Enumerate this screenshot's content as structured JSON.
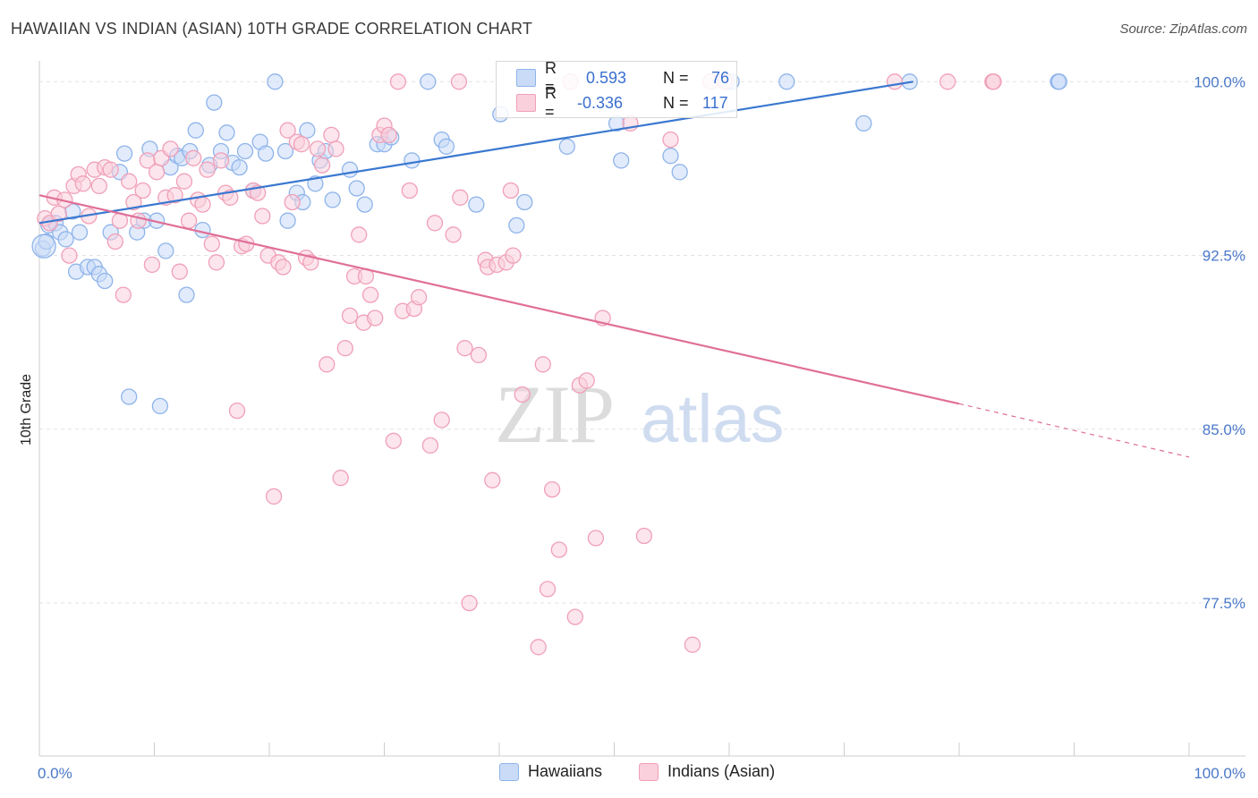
{
  "title": "HAWAIIAN VS INDIAN (ASIAN) 10TH GRADE CORRELATION CHART",
  "source": "Source: ZipAtlas.com",
  "watermark": {
    "zip": "ZIP",
    "atlas": "atlas"
  },
  "stats": [
    {
      "r_label": "R =",
      "r_value": "0.593",
      "n_label": "N =",
      "n_value": "76",
      "color": "#8fb4ea",
      "fill": "#c9dbf7"
    },
    {
      "r_label": "R =",
      "r_value": "-0.336",
      "n_label": "N =",
      "n_value": "117",
      "color": "#f0a0b8",
      "fill": "#fad0dc"
    }
  ],
  "legend": [
    {
      "label": "Hawaiians",
      "color": "#8fb4ea",
      "fill": "#c9dbf7"
    },
    {
      "label": "Indians (Asian)",
      "color": "#f0a0b8",
      "fill": "#fad0dc"
    }
  ],
  "chart_data": {
    "type": "scatter",
    "title": "HAWAIIAN VS INDIAN (ASIAN) 10TH GRADE CORRELATION CHART",
    "xlabel": "",
    "ylabel": "10th Grade",
    "xlim": [
      0,
      100
    ],
    "ylim": [
      70.9,
      100.9
    ],
    "x_tick_labels": [
      "0.0%",
      "100.0%"
    ],
    "y_ticks": [
      77.5,
      85.0,
      92.5,
      100.0
    ],
    "y_tick_labels": [
      "77.5%",
      "85.0%",
      "92.5%",
      "100.0%"
    ],
    "grid": "horizontal dashed",
    "legend_position": "bottom-center",
    "series": [
      {
        "name": "Hawaiians",
        "color": "#8fb4ea",
        "fill": "#c9dbf7",
        "line_color": "#3a78d0",
        "trend": {
          "x": [
            0,
            76
          ],
          "y": [
            93.9,
            100.0
          ]
        },
        "points": [
          [
            0.3,
            92.8
          ],
          [
            0.6,
            93.1
          ],
          [
            0.8,
            93.8
          ],
          [
            1.4,
            93.9
          ],
          [
            1.8,
            93.5
          ],
          [
            2.3,
            93.2
          ],
          [
            2.9,
            94.4
          ],
          [
            3.2,
            91.8
          ],
          [
            3.5,
            93.5
          ],
          [
            4.2,
            92.0
          ],
          [
            4.8,
            92.0
          ],
          [
            5.2,
            91.7
          ],
          [
            5.7,
            91.4
          ],
          [
            6.2,
            93.5
          ],
          [
            7.0,
            96.1
          ],
          [
            7.4,
            96.9
          ],
          [
            7.8,
            86.4
          ],
          [
            8.5,
            93.5
          ],
          [
            9.1,
            94.0
          ],
          [
            9.6,
            97.1
          ],
          [
            10.2,
            94.0
          ],
          [
            10.5,
            86.0
          ],
          [
            11.0,
            92.7
          ],
          [
            11.4,
            96.3
          ],
          [
            12.0,
            96.8
          ],
          [
            12.4,
            96.7
          ],
          [
            12.8,
            90.8
          ],
          [
            13.1,
            97.0
          ],
          [
            13.6,
            97.9
          ],
          [
            14.2,
            93.6
          ],
          [
            14.8,
            96.4
          ],
          [
            15.2,
            99.1
          ],
          [
            15.8,
            97.0
          ],
          [
            16.3,
            97.8
          ],
          [
            16.8,
            96.5
          ],
          [
            17.4,
            96.3
          ],
          [
            17.9,
            97.0
          ],
          [
            18.6,
            95.3
          ],
          [
            19.2,
            97.4
          ],
          [
            19.7,
            96.9
          ],
          [
            20.5,
            100.0
          ],
          [
            21.4,
            97.0
          ],
          [
            21.6,
            94.0
          ],
          [
            22.4,
            95.2
          ],
          [
            22.9,
            94.8
          ],
          [
            23.3,
            97.9
          ],
          [
            24.0,
            95.6
          ],
          [
            24.4,
            96.6
          ],
          [
            24.9,
            97.0
          ],
          [
            25.5,
            94.9
          ],
          [
            27.0,
            96.2
          ],
          [
            27.6,
            95.4
          ],
          [
            28.3,
            94.7
          ],
          [
            29.4,
            97.3
          ],
          [
            30.0,
            97.3
          ],
          [
            30.6,
            97.6
          ],
          [
            32.4,
            96.6
          ],
          [
            33.8,
            100.0
          ],
          [
            35.0,
            97.5
          ],
          [
            35.4,
            97.2
          ],
          [
            38.0,
            94.7
          ],
          [
            40.1,
            98.6
          ],
          [
            41.5,
            93.8
          ],
          [
            42.2,
            94.8
          ],
          [
            45.9,
            97.2
          ],
          [
            50.2,
            98.2
          ],
          [
            50.6,
            96.6
          ],
          [
            54.9,
            96.8
          ],
          [
            55.7,
            96.1
          ],
          [
            59.8,
            100.0
          ],
          [
            60.2,
            100.0
          ],
          [
            65.0,
            100.0
          ],
          [
            71.7,
            98.2
          ],
          [
            75.7,
            100.0
          ],
          [
            88.6,
            100.0
          ],
          [
            88.7,
            100.0
          ]
        ]
      },
      {
        "name": "Indians (Asian)",
        "color": "#f0a0b8",
        "fill": "#fad0dc",
        "line_color": "#e06f98",
        "trend": {
          "x": [
            0,
            80
          ],
          "y": [
            95.1,
            86.1
          ]
        },
        "trend_dashed": {
          "x": [
            80,
            100
          ],
          "y": [
            86.1,
            83.8
          ]
        },
        "points": [
          [
            0.5,
            94.1
          ],
          [
            0.9,
            93.9
          ],
          [
            1.3,
            95.0
          ],
          [
            1.7,
            94.3
          ],
          [
            2.2,
            94.9
          ],
          [
            2.6,
            92.5
          ],
          [
            3.0,
            95.5
          ],
          [
            3.4,
            96.0
          ],
          [
            3.8,
            95.6
          ],
          [
            4.3,
            94.2
          ],
          [
            4.8,
            96.2
          ],
          [
            5.2,
            95.5
          ],
          [
            5.7,
            96.3
          ],
          [
            6.2,
            96.2
          ],
          [
            6.6,
            93.1
          ],
          [
            7.0,
            94.0
          ],
          [
            7.3,
            90.8
          ],
          [
            7.8,
            95.7
          ],
          [
            8.2,
            94.8
          ],
          [
            8.6,
            94.0
          ],
          [
            9.0,
            95.3
          ],
          [
            9.4,
            96.6
          ],
          [
            9.8,
            92.1
          ],
          [
            10.2,
            96.1
          ],
          [
            10.6,
            96.7
          ],
          [
            11.0,
            95.0
          ],
          [
            11.4,
            97.1
          ],
          [
            11.8,
            95.1
          ],
          [
            12.2,
            91.8
          ],
          [
            12.6,
            95.7
          ],
          [
            13.0,
            94.0
          ],
          [
            13.4,
            96.7
          ],
          [
            13.8,
            94.9
          ],
          [
            14.2,
            94.7
          ],
          [
            14.6,
            96.2
          ],
          [
            15.0,
            93.0
          ],
          [
            15.4,
            92.2
          ],
          [
            15.8,
            96.6
          ],
          [
            16.2,
            95.2
          ],
          [
            16.6,
            95.0
          ],
          [
            17.2,
            85.8
          ],
          [
            17.6,
            92.9
          ],
          [
            18.0,
            93.0
          ],
          [
            18.6,
            95.3
          ],
          [
            19.0,
            95.2
          ],
          [
            19.4,
            94.2
          ],
          [
            19.9,
            92.5
          ],
          [
            20.4,
            82.1
          ],
          [
            20.8,
            92.2
          ],
          [
            21.2,
            92.0
          ],
          [
            21.6,
            97.9
          ],
          [
            22.0,
            94.8
          ],
          [
            22.4,
            97.4
          ],
          [
            22.8,
            97.3
          ],
          [
            23.2,
            92.4
          ],
          [
            23.6,
            92.2
          ],
          [
            24.2,
            97.1
          ],
          [
            24.6,
            96.4
          ],
          [
            25.0,
            87.8
          ],
          [
            25.4,
            97.7
          ],
          [
            25.8,
            97.1
          ],
          [
            26.2,
            82.9
          ],
          [
            26.6,
            88.5
          ],
          [
            27.0,
            89.9
          ],
          [
            27.4,
            91.6
          ],
          [
            27.8,
            93.4
          ],
          [
            28.2,
            89.6
          ],
          [
            28.4,
            91.6
          ],
          [
            28.8,
            90.8
          ],
          [
            29.2,
            89.8
          ],
          [
            29.6,
            97.7
          ],
          [
            30.0,
            98.1
          ],
          [
            30.4,
            97.7
          ],
          [
            30.8,
            84.5
          ],
          [
            31.2,
            100.0
          ],
          [
            31.6,
            90.1
          ],
          [
            32.2,
            95.3
          ],
          [
            32.6,
            90.2
          ],
          [
            33.0,
            90.7
          ],
          [
            34.0,
            84.3
          ],
          [
            34.4,
            93.9
          ],
          [
            35.0,
            85.4
          ],
          [
            36.0,
            93.4
          ],
          [
            36.6,
            95.0
          ],
          [
            37.0,
            88.5
          ],
          [
            37.4,
            77.5
          ],
          [
            38.2,
            88.2
          ],
          [
            38.8,
            92.3
          ],
          [
            39.0,
            92.0
          ],
          [
            39.4,
            82.8
          ],
          [
            39.8,
            92.1
          ],
          [
            40.6,
            92.2
          ],
          [
            41.0,
            95.3
          ],
          [
            41.2,
            92.5
          ],
          [
            42.0,
            86.5
          ],
          [
            43.4,
            75.6
          ],
          [
            43.8,
            87.8
          ],
          [
            44.2,
            78.1
          ],
          [
            44.6,
            82.4
          ],
          [
            45.2,
            79.8
          ],
          [
            46.2,
            100.0
          ],
          [
            46.6,
            76.9
          ],
          [
            47.0,
            86.9
          ],
          [
            47.6,
            87.1
          ],
          [
            48.4,
            80.3
          ],
          [
            49.0,
            89.8
          ],
          [
            51.4,
            98.2
          ],
          [
            52.6,
            80.4
          ],
          [
            54.9,
            97.5
          ],
          [
            56.8,
            75.7
          ],
          [
            58.4,
            100.0
          ],
          [
            59.6,
            100.0
          ],
          [
            74.4,
            100.0
          ],
          [
            82.9,
            100.0
          ],
          [
            83.0,
            100.0
          ],
          [
            79.0,
            100.0
          ],
          [
            36.5,
            100.0
          ]
        ]
      }
    ]
  }
}
